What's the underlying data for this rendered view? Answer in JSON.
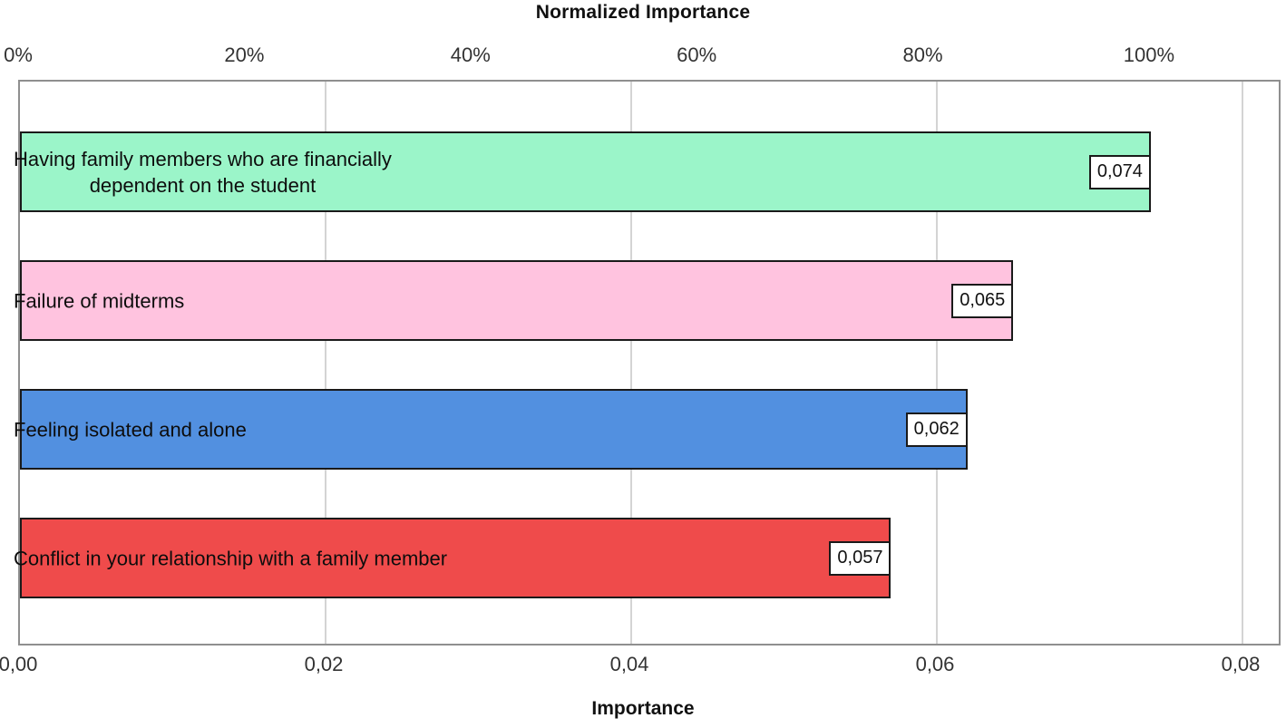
{
  "chart_data": {
    "type": "bar",
    "orientation": "horizontal",
    "top_axis_title": "Normalized Importance",
    "bottom_axis_title": "Importance",
    "categories": [
      "Having family members who are financially dependent on the student",
      "Failure of midterms",
      "Feeling isolated and alone",
      "Conflict in your relationship with a family member"
    ],
    "category_label_lines": [
      [
        "Having family members who are financially",
        "dependent on the student"
      ],
      [
        "Failure of midterms"
      ],
      [
        "Feeling isolated and alone"
      ],
      [
        "Conflict in your relationship with a family member"
      ]
    ],
    "values": [
      0.074,
      0.065,
      0.062,
      0.057
    ],
    "value_labels": [
      "0,074",
      "0,065",
      "0,062",
      "0,057"
    ],
    "bar_colors": [
      "#9BF5C9",
      "#FFC3DF",
      "#5290E0",
      "#EF4B4B"
    ],
    "bottom_axis_tick_labels": [
      "0,00",
      "0,02",
      "0,04",
      "0,06",
      "0,08"
    ],
    "bottom_axis_tick_values": [
      0,
      0.02,
      0.04,
      0.06,
      0.08
    ],
    "top_axis_tick_labels": [
      "0%",
      "20%",
      "40%",
      "60%",
      "80%",
      "100%"
    ],
    "top_axis_tick_percents": [
      0,
      20,
      40,
      60,
      80,
      100
    ],
    "xlim": [
      0,
      0.08
    ],
    "normalized_max_value": 0.074,
    "grid": true,
    "legend": "none",
    "decimal_separator": ","
  },
  "colors": {
    "plot_border": "#8f8f8f",
    "gridline": "#d4d4d4",
    "bar_border": "#1a1a1a",
    "value_box_bg": "#ffffff",
    "text": "#111111"
  }
}
